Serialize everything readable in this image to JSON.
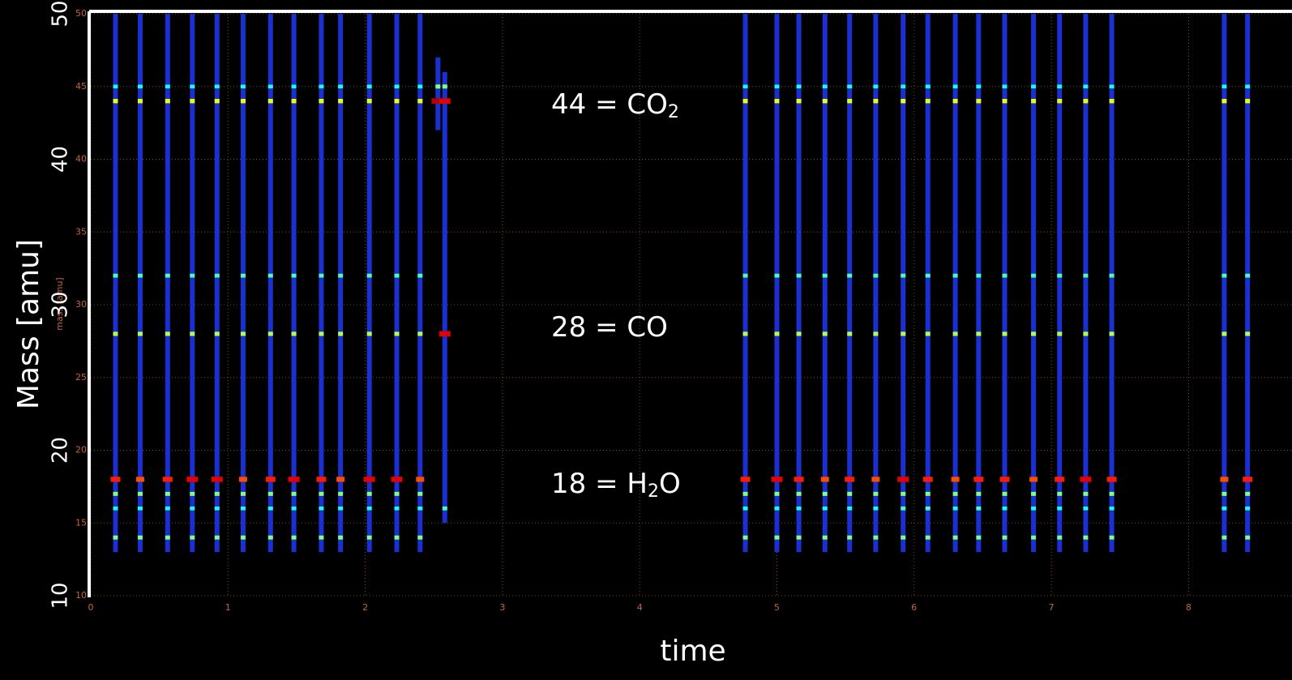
{
  "chart_data": {
    "type": "spectrogram",
    "xlabel": "time",
    "ylabel": "Mass [amu]",
    "ylabel_small": "mass [amu]",
    "xlim": [
      0,
      8.6
    ],
    "ylim": [
      10,
      50
    ],
    "xticks": [
      0,
      1,
      2,
      3,
      4,
      5,
      6,
      7,
      8
    ],
    "yticks": [
      10,
      15,
      20,
      25,
      30,
      35,
      40,
      45,
      50
    ],
    "y_overlay_ticks": [
      10,
      20,
      30,
      40,
      50
    ],
    "grid": true,
    "annotations": [
      {
        "text": "44 = CO",
        "sub": "2"
      },
      {
        "text": "28 = CO"
      },
      {
        "text": "18 = H",
        "sub": "2",
        "tail": "O"
      }
    ],
    "x": [
      0.18,
      0.36,
      0.56,
      0.74,
      0.92,
      1.11,
      1.31,
      1.48,
      1.68,
      1.82,
      2.03,
      2.23,
      2.4,
      2.53,
      2.58,
      4.77,
      5.0,
      5.16,
      5.35,
      5.53,
      5.72,
      5.92,
      6.1,
      6.3,
      6.47,
      6.66,
      6.87,
      7.06,
      7.25,
      7.44,
      8.26,
      8.43
    ],
    "mass_top": [
      50,
      50,
      50,
      50,
      50,
      50,
      50,
      50,
      50,
      50,
      50,
      50,
      50,
      47,
      46,
      50,
      50,
      50,
      50,
      50,
      50,
      50,
      50,
      50,
      50,
      50,
      50,
      50,
      50,
      50,
      50,
      50
    ],
    "mass_bottom": [
      13,
      13,
      13,
      13,
      13,
      13,
      13,
      13,
      13,
      13,
      13,
      13,
      13,
      42,
      15,
      13,
      13,
      13,
      13,
      13,
      13,
      13,
      13,
      13,
      13,
      13,
      13,
      13,
      13,
      13,
      13,
      13
    ],
    "peaks": [
      {
        "mass": 14,
        "intensity": [
          0.5,
          0.5,
          0.5,
          0.5,
          0.5,
          0.5,
          0.5,
          0.5,
          0.5,
          0.5,
          0.5,
          0.5,
          0.5,
          null,
          null,
          0.5,
          0.5,
          0.5,
          0.5,
          0.5,
          0.5,
          0.5,
          0.5,
          0.5,
          0.5,
          0.5,
          0.5,
          0.5,
          0.5,
          0.5,
          0.5,
          0.5
        ]
      },
      {
        "mass": 16,
        "intensity": [
          0.4,
          0.4,
          0.4,
          0.4,
          0.4,
          0.4,
          0.4,
          0.4,
          0.4,
          0.4,
          0.4,
          0.4,
          0.4,
          null,
          0.45,
          0.4,
          0.4,
          0.4,
          0.4,
          0.4,
          0.4,
          0.45,
          0.45,
          0.4,
          0.45,
          0.4,
          0.4,
          0.4,
          0.4,
          0.4,
          0.4,
          0.4
        ]
      },
      {
        "mass": 17,
        "intensity": [
          0.5,
          0.5,
          0.5,
          0.5,
          0.5,
          0.5,
          0.5,
          0.5,
          0.5,
          0.5,
          0.5,
          0.5,
          0.5,
          null,
          null,
          0.5,
          0.5,
          0.5,
          0.5,
          0.5,
          0.5,
          0.5,
          0.5,
          0.5,
          0.5,
          0.5,
          0.5,
          0.5,
          0.5,
          0.5,
          0.5,
          0.5
        ]
      },
      {
        "mass": 18,
        "intensity": [
          0.85,
          0.8,
          0.85,
          0.9,
          0.9,
          0.8,
          0.85,
          0.9,
          0.85,
          0.8,
          0.9,
          0.9,
          0.8,
          null,
          null,
          0.85,
          0.9,
          0.85,
          0.8,
          0.85,
          0.8,
          0.9,
          0.85,
          0.8,
          0.85,
          0.85,
          0.8,
          0.85,
          0.9,
          0.85,
          0.8,
          0.85
        ]
      },
      {
        "mass": 28,
        "intensity": [
          0.55,
          0.55,
          0.55,
          0.55,
          0.55,
          0.55,
          0.55,
          0.55,
          0.55,
          0.55,
          0.55,
          0.55,
          0.55,
          null,
          0.9,
          0.55,
          0.55,
          0.55,
          0.55,
          0.55,
          0.55,
          0.55,
          0.55,
          0.55,
          0.55,
          0.55,
          0.55,
          0.55,
          0.55,
          0.55,
          0.55,
          0.55
        ]
      },
      {
        "mass": 32,
        "intensity": [
          0.45,
          0.45,
          0.45,
          0.45,
          0.45,
          0.45,
          0.45,
          0.45,
          0.45,
          0.45,
          0.45,
          0.45,
          0.45,
          null,
          null,
          0.45,
          0.45,
          0.45,
          0.45,
          0.45,
          0.45,
          0.45,
          0.45,
          0.45,
          0.45,
          0.45,
          0.45,
          0.45,
          0.45,
          0.45,
          0.45,
          0.45
        ]
      },
      {
        "mass": 44,
        "intensity": [
          0.6,
          0.6,
          0.6,
          0.6,
          0.6,
          0.6,
          0.6,
          0.6,
          0.6,
          0.6,
          0.6,
          0.6,
          0.6,
          0.95,
          0.9,
          0.6,
          0.6,
          0.6,
          0.6,
          0.6,
          0.6,
          0.6,
          0.6,
          0.6,
          0.6,
          0.6,
          0.6,
          0.6,
          0.6,
          0.6,
          0.6,
          0.6
        ]
      },
      {
        "mass": 45,
        "intensity": [
          0.4,
          0.4,
          0.4,
          0.4,
          0.4,
          0.4,
          0.4,
          0.4,
          0.4,
          0.4,
          0.4,
          0.4,
          0.4,
          0.5,
          0.5,
          0.4,
          0.4,
          0.4,
          0.4,
          0.4,
          0.4,
          0.4,
          0.4,
          0.4,
          0.4,
          0.4,
          0.4,
          0.4,
          0.4,
          0.4,
          0.4,
          0.4
        ]
      }
    ]
  }
}
